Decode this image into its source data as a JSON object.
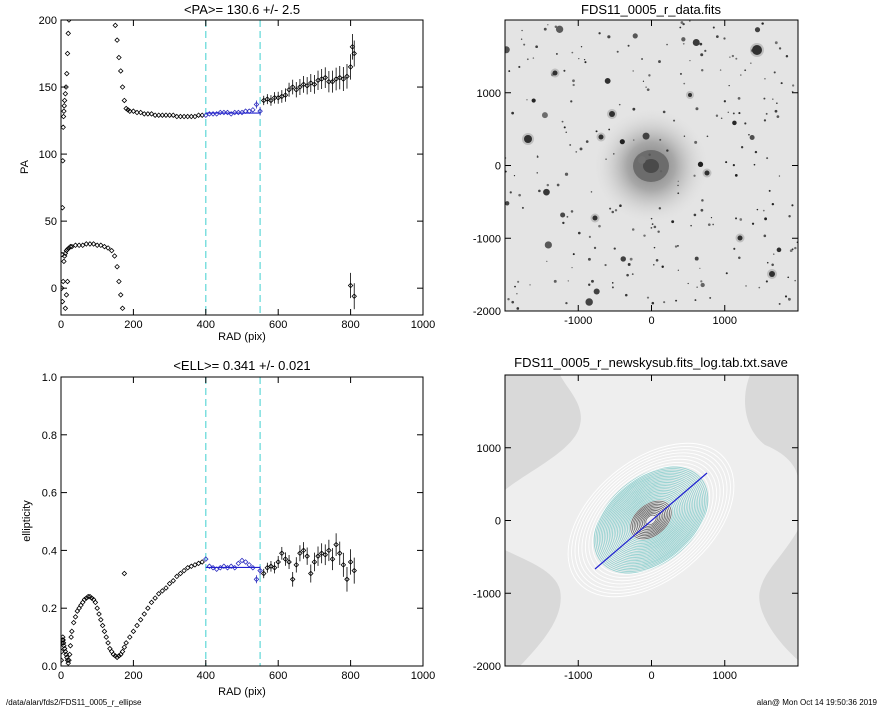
{
  "chart_data": [
    {
      "type": "scatter",
      "title": "<PA>= 130.6 +/-   2.5",
      "xlabel": "RAD (pix)",
      "ylabel": "PA",
      "xlim": [
        0,
        1000
      ],
      "ylim": [
        -20,
        200
      ],
      "xticks": [
        "0",
        "200",
        "400",
        "600",
        "800",
        "1000"
      ],
      "yticks": [
        "0",
        "50",
        "100",
        "150",
        "200"
      ],
      "xtick_values": [
        0,
        200,
        400,
        600,
        800,
        1000
      ],
      "ytick_values": [
        0,
        50,
        100,
        150,
        200
      ],
      "vlines": [
        400,
        550
      ],
      "fit_line": {
        "x": [
          400,
          550
        ],
        "y": [
          130.6,
          130.6
        ]
      },
      "series": [
        {
          "points": [
            [
              2,
              0
            ],
            [
              3,
              25
            ],
            [
              4,
              60
            ],
            [
              5,
              95
            ],
            [
              6,
              120
            ],
            [
              7,
              128
            ],
            [
              8,
              132
            ],
            [
              9,
              136
            ],
            [
              10,
              140
            ],
            [
              12,
              145
            ],
            [
              14,
              150
            ],
            [
              16,
              160
            ],
            [
              18,
              175
            ],
            [
              20,
              190
            ],
            [
              22,
              200
            ],
            [
              4,
              -10
            ],
            [
              6,
              5
            ],
            [
              8,
              20
            ],
            [
              10,
              24
            ],
            [
              12,
              26
            ],
            [
              15,
              28
            ],
            [
              18,
              29
            ],
            [
              22,
              30
            ],
            [
              26,
              31
            ],
            [
              30,
              31
            ],
            [
              40,
              32
            ],
            [
              50,
              32
            ],
            [
              60,
              32
            ],
            [
              70,
              33
            ],
            [
              80,
              33
            ],
            [
              90,
              33
            ],
            [
              100,
              32
            ],
            [
              110,
              32
            ],
            [
              120,
              31
            ],
            [
              130,
              30
            ],
            [
              140,
              28
            ],
            [
              148,
              24
            ],
            [
              155,
              16
            ],
            [
              160,
              5
            ],
            [
              165,
              -5
            ],
            [
              170,
              -15
            ],
            [
              12,
              -15
            ],
            [
              15,
              -5
            ],
            [
              18,
              5
            ],
            [
              150,
              196
            ],
            [
              155,
              185
            ],
            [
              160,
              172
            ],
            [
              165,
              162
            ],
            [
              170,
              150
            ],
            [
              175,
              140
            ],
            [
              180,
              134
            ],
            [
              185,
              133
            ],
            [
              190,
              132
            ],
            [
              200,
              132
            ],
            [
              210,
              131
            ],
            [
              220,
              131
            ],
            [
              230,
              130
            ],
            [
              240,
              130
            ],
            [
              250,
              130
            ],
            [
              260,
              129
            ],
            [
              270,
              129
            ],
            [
              280,
              129
            ],
            [
              290,
              129
            ],
            [
              300,
              129
            ],
            [
              310,
              129
            ],
            [
              320,
              128
            ],
            [
              330,
              128
            ],
            [
              340,
              128
            ],
            [
              350,
              128
            ],
            [
              360,
              128
            ],
            [
              370,
              128
            ],
            [
              380,
              129
            ],
            [
              390,
              129
            ],
            [
              400,
              129
            ],
            [
              410,
              130
            ],
            [
              420,
              130
            ],
            [
              430,
              130
            ],
            [
              440,
              131
            ],
            [
              450,
              131
            ],
            [
              460,
              131
            ],
            [
              470,
              130
            ],
            [
              480,
              131
            ],
            [
              490,
              131
            ],
            [
              500,
              131
            ],
            [
              510,
              132
            ],
            [
              520,
              132
            ],
            [
              530,
              133
            ],
            [
              540,
              137
            ],
            [
              550,
              132
            ],
            [
              560,
              140
            ],
            [
              570,
              141
            ],
            [
              580,
              140
            ],
            [
              590,
              142
            ],
            [
              600,
              142
            ],
            [
              610,
              143
            ],
            [
              620,
              144
            ],
            [
              630,
              148
            ],
            [
              640,
              150
            ],
            [
              650,
              148
            ],
            [
              660,
              150
            ],
            [
              670,
              152
            ],
            [
              680,
              151
            ],
            [
              690,
              153
            ],
            [
              700,
              152
            ],
            [
              710,
              155
            ],
            [
              720,
              156
            ],
            [
              730,
              157
            ],
            [
              740,
              154
            ],
            [
              750,
              154
            ],
            [
              760,
              156
            ],
            [
              770,
              157
            ],
            [
              780,
              156
            ],
            [
              790,
              158
            ],
            [
              800,
              165
            ],
            [
              805,
              180
            ],
            [
              810,
              175
            ],
            [
              800,
              2
            ],
            [
              810,
              -6
            ]
          ]
        }
      ]
    },
    {
      "type": "heatmap",
      "title": "FDS11_0005_r_data.fits",
      "xlim": [
        -2000,
        2000
      ],
      "ylim": [
        -2000,
        2000
      ],
      "xticks": [
        "-1000",
        "0",
        "1000"
      ],
      "yticks": [
        "-2000",
        "-1000",
        "0",
        "1000"
      ],
      "xtick_values": [
        -1000,
        0,
        1000
      ],
      "ytick_values": [
        -2000,
        -1000,
        0,
        1000
      ]
    },
    {
      "type": "scatter",
      "title": "<ELL>= 0.341 +/-  0.021",
      "xlabel": "RAD (pix)",
      "ylabel": "ellipticity",
      "xlim": [
        0,
        1000
      ],
      "ylim": [
        0,
        1.0
      ],
      "xticks": [
        "0",
        "200",
        "400",
        "600",
        "800",
        "1000"
      ],
      "yticks": [
        "0.0",
        "0.2",
        "0.4",
        "0.6",
        "0.8",
        "1.0"
      ],
      "xtick_values": [
        0,
        200,
        400,
        600,
        800,
        1000
      ],
      "ytick_values": [
        0,
        0.2,
        0.4,
        0.6,
        0.8,
        1.0
      ],
      "vlines": [
        400,
        550
      ],
      "fit_line": {
        "x": [
          400,
          550
        ],
        "y": [
          0.341,
          0.341
        ]
      },
      "series": [
        {
          "points": [
            [
              1,
              0.02
            ],
            [
              2,
              0.05
            ],
            [
              3,
              0.08
            ],
            [
              4,
              0.09
            ],
            [
              5,
              0.1
            ],
            [
              6,
              0.09
            ],
            [
              7,
              0.08
            ],
            [
              8,
              0.07
            ],
            [
              10,
              0.06
            ],
            [
              12,
              0.05
            ],
            [
              14,
              0.04
            ],
            [
              16,
              0.03
            ],
            [
              18,
              0.02
            ],
            [
              20,
              0.01
            ],
            [
              22,
              0.02
            ],
            [
              24,
              0.04
            ],
            [
              26,
              0.07
            ],
            [
              28,
              0.1
            ],
            [
              30,
              0.12
            ],
            [
              35,
              0.15
            ],
            [
              40,
              0.17
            ],
            [
              45,
              0.19
            ],
            [
              50,
              0.2
            ],
            [
              55,
              0.21
            ],
            [
              60,
              0.22
            ],
            [
              65,
              0.23
            ],
            [
              70,
              0.235
            ],
            [
              75,
              0.24
            ],
            [
              80,
              0.24
            ],
            [
              85,
              0.235
            ],
            [
              90,
              0.23
            ],
            [
              95,
              0.22
            ],
            [
              100,
              0.2
            ],
            [
              105,
              0.18
            ],
            [
              110,
              0.16
            ],
            [
              115,
              0.14
            ],
            [
              120,
              0.12
            ],
            [
              125,
              0.1
            ],
            [
              130,
              0.08
            ],
            [
              135,
              0.06
            ],
            [
              140,
              0.05
            ],
            [
              145,
              0.04
            ],
            [
              150,
              0.035
            ],
            [
              155,
              0.03
            ],
            [
              160,
              0.035
            ],
            [
              165,
              0.04
            ],
            [
              170,
              0.05
            ],
            [
              175,
              0.065
            ],
            [
              180,
              0.08
            ],
            [
              175,
              0.32
            ],
            [
              190,
              0.1
            ],
            [
              200,
              0.12
            ],
            [
              210,
              0.14
            ],
            [
              220,
              0.16
            ],
            [
              230,
              0.18
            ],
            [
              240,
              0.2
            ],
            [
              250,
              0.22
            ],
            [
              260,
              0.235
            ],
            [
              270,
              0.25
            ],
            [
              280,
              0.26
            ],
            [
              290,
              0.27
            ],
            [
              300,
              0.285
            ],
            [
              310,
              0.295
            ],
            [
              320,
              0.31
            ],
            [
              330,
              0.32
            ],
            [
              340,
              0.33
            ],
            [
              350,
              0.34
            ],
            [
              360,
              0.345
            ],
            [
              370,
              0.35
            ],
            [
              380,
              0.355
            ],
            [
              390,
              0.36
            ],
            [
              400,
              0.37
            ],
            [
              410,
              0.345
            ],
            [
              420,
              0.34
            ],
            [
              430,
              0.335
            ],
            [
              440,
              0.34
            ],
            [
              450,
              0.345
            ],
            [
              460,
              0.34
            ],
            [
              470,
              0.345
            ],
            [
              480,
              0.34
            ],
            [
              490,
              0.355
            ],
            [
              500,
              0.365
            ],
            [
              510,
              0.36
            ],
            [
              520,
              0.35
            ],
            [
              530,
              0.34
            ],
            [
              540,
              0.3
            ],
            [
              550,
              0.33
            ],
            [
              560,
              0.32
            ],
            [
              570,
              0.34
            ],
            [
              580,
              0.345
            ],
            [
              590,
              0.34
            ],
            [
              600,
              0.36
            ],
            [
              610,
              0.39
            ],
            [
              620,
              0.37
            ],
            [
              630,
              0.36
            ],
            [
              640,
              0.3
            ],
            [
              650,
              0.35
            ],
            [
              660,
              0.39
            ],
            [
              670,
              0.4
            ],
            [
              680,
              0.38
            ],
            [
              690,
              0.32
            ],
            [
              700,
              0.36
            ],
            [
              710,
              0.38
            ],
            [
              720,
              0.39
            ],
            [
              730,
              0.385
            ],
            [
              740,
              0.4
            ],
            [
              750,
              0.37
            ],
            [
              760,
              0.42
            ],
            [
              770,
              0.39
            ],
            [
              780,
              0.35
            ],
            [
              790,
              0.3
            ],
            [
              800,
              0.36
            ],
            [
              810,
              0.33
            ]
          ]
        }
      ]
    },
    {
      "type": "heatmap",
      "title": "FDS11_0005_r_newskysub.fits_log.tab.txt.save",
      "xlim": [
        -2000,
        2000
      ],
      "ylim": [
        -2000,
        2000
      ],
      "xticks": [
        "-1000",
        "0",
        "1000"
      ],
      "yticks": [
        "-2000",
        "-1000",
        "0",
        "1000"
      ],
      "xtick_values": [
        -1000,
        0,
        1000
      ],
      "ytick_values": [
        -2000,
        -1000,
        0,
        1000
      ]
    }
  ],
  "footer": {
    "left": "/data/alan/fds2/FDS11_0005_r_ellipse",
    "right": "alan@  Mon Oct 14 19:50:36 2019"
  },
  "colors": {
    "vline": "#5fd7d7",
    "fit": "#2020d0",
    "points": "#000000",
    "highlight": "#3030c0",
    "axis": "#000000",
    "ellipse": "#8fd0cf"
  }
}
